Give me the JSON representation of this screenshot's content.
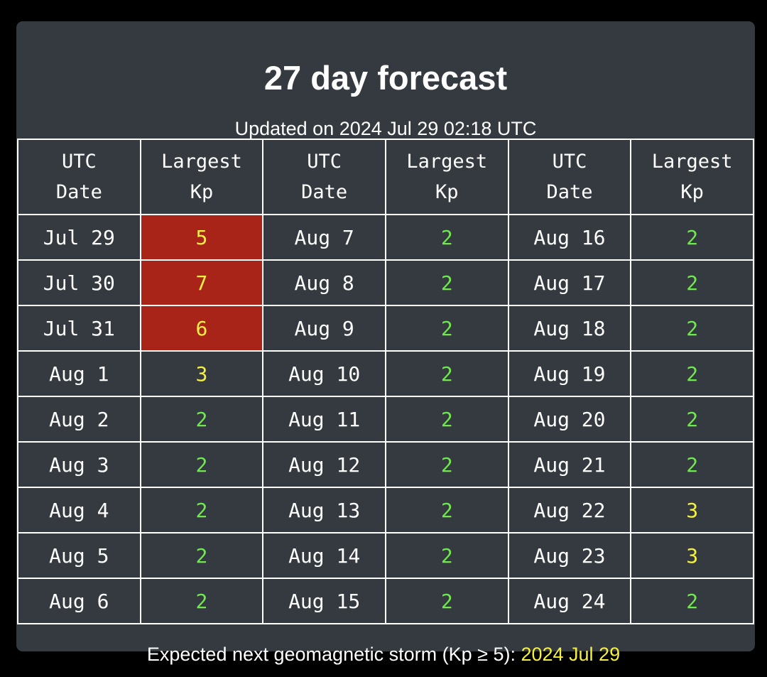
{
  "header": {
    "title": "27 day forecast",
    "updated": "Updated on 2024 Jul 29 02:18 UTC"
  },
  "table": {
    "header_date": [
      "UTC",
      "Date"
    ],
    "header_kp": [
      "Largest",
      "Kp"
    ],
    "rows": [
      [
        {
          "date": "Jul 29",
          "kp": "5"
        },
        {
          "date": "Aug 7",
          "kp": "2"
        },
        {
          "date": "Aug 16",
          "kp": "2"
        }
      ],
      [
        {
          "date": "Jul 30",
          "kp": "7"
        },
        {
          "date": "Aug 8",
          "kp": "2"
        },
        {
          "date": "Aug 17",
          "kp": "2"
        }
      ],
      [
        {
          "date": "Jul 31",
          "kp": "6"
        },
        {
          "date": "Aug 9",
          "kp": "2"
        },
        {
          "date": "Aug 18",
          "kp": "2"
        }
      ],
      [
        {
          "date": "Aug 1",
          "kp": "3"
        },
        {
          "date": "Aug 10",
          "kp": "2"
        },
        {
          "date": "Aug 19",
          "kp": "2"
        }
      ],
      [
        {
          "date": "Aug 2",
          "kp": "2"
        },
        {
          "date": "Aug 11",
          "kp": "2"
        },
        {
          "date": "Aug 20",
          "kp": "2"
        }
      ],
      [
        {
          "date": "Aug 3",
          "kp": "2"
        },
        {
          "date": "Aug 12",
          "kp": "2"
        },
        {
          "date": "Aug 21",
          "kp": "2"
        }
      ],
      [
        {
          "date": "Aug 4",
          "kp": "2"
        },
        {
          "date": "Aug 13",
          "kp": "2"
        },
        {
          "date": "Aug 22",
          "kp": "3"
        }
      ],
      [
        {
          "date": "Aug 5",
          "kp": "2"
        },
        {
          "date": "Aug 14",
          "kp": "2"
        },
        {
          "date": "Aug 23",
          "kp": "3"
        }
      ],
      [
        {
          "date": "Aug 6",
          "kp": "2"
        },
        {
          "date": "Aug 15",
          "kp": "2"
        },
        {
          "date": "Aug 24",
          "kp": "2"
        }
      ]
    ]
  },
  "footer": {
    "label": "Expected next geomagnetic storm (Kp ≥ 5): ",
    "date": "2024 Jul 29"
  },
  "colors": {
    "background": "#000000",
    "card": "#343a40",
    "storm_cell": "#a82318",
    "kp_low": "#6fe94f",
    "kp_elevated": "#f5ef43",
    "next_storm_date": "#f5ef43"
  }
}
